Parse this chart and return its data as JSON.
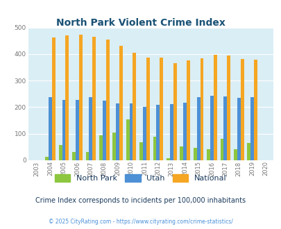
{
  "title": "North Park Violent Crime Index",
  "years": [
    2003,
    2004,
    2005,
    2006,
    2007,
    2008,
    2009,
    2010,
    2011,
    2012,
    2013,
    2014,
    2015,
    2016,
    2017,
    2018,
    2019,
    2020
  ],
  "north_park": [
    0,
    13,
    57,
    32,
    32,
    93,
    105,
    155,
    67,
    88,
    8,
    52,
    46,
    42,
    80,
    43,
    65,
    0
  ],
  "utah": [
    0,
    237,
    228,
    228,
    238,
    224,
    214,
    215,
    200,
    210,
    211,
    217,
    237,
    243,
    240,
    234,
    237,
    0
  ],
  "national": [
    0,
    463,
    469,
    472,
    466,
    455,
    432,
    405,
    387,
    387,
    367,
    377,
    383,
    397,
    394,
    381,
    379,
    0
  ],
  "north_park_color": "#8dc63f",
  "utah_color": "#4d90d5",
  "national_color": "#f5a623",
  "bg_color": "#daeef5",
  "title_color": "#1a5276",
  "ylim": [
    0,
    500
  ],
  "yticks": [
    0,
    100,
    200,
    300,
    400,
    500
  ],
  "legend_labels": [
    "North Park",
    "Utah",
    "National"
  ],
  "subtitle": "Crime Index corresponds to incidents per 100,000 inhabitants",
  "copyright": "© 2025 CityRating.com - https://www.cityrating.com/crime-statistics/",
  "subtitle_color": "#1a3a5c",
  "copyright_color": "#4a90d9"
}
